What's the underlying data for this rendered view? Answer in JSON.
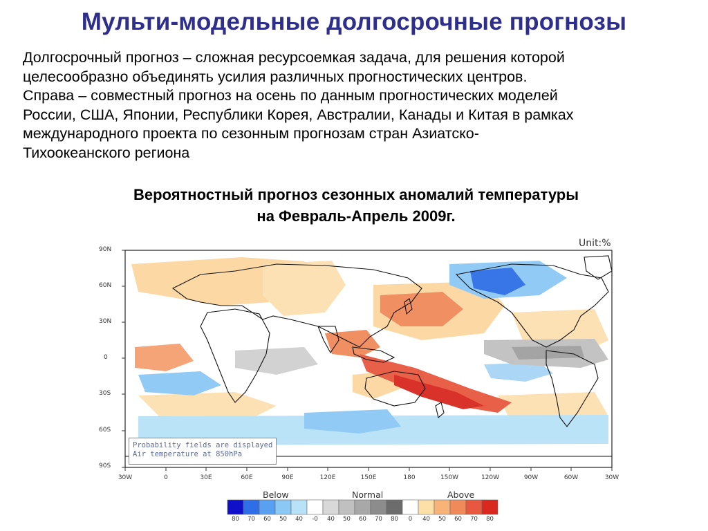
{
  "title": "Мульти-модельные долгосрочные прогнозы",
  "body_lines": [
    "Долгосрочный прогноз – сложная ресурсоемкая задача, для решения которой",
    "целесообразно объединять усилия различных прогностических центров.",
    "Справа – совместный прогноз на осень по данным прогностических моделей",
    "России, США, Японии, Республики Корея, Австралии, Канады и Китая в рамках",
    "международного проекта по сезонным прогнозам стран Азиатско-",
    "Тихоокеанского региона"
  ],
  "subtitle_lines": [
    "Вероятностный прогноз сезонных аномалий температуры",
    "на Февраль-Апрель 2009г."
  ],
  "map": {
    "unit": "Unit:%",
    "lat_labels": [
      "90N",
      "60N",
      "30N",
      "0",
      "30S",
      "60S",
      "90S"
    ],
    "lon_labels": [
      "30W",
      "0",
      "30E",
      "60E",
      "90E",
      "120E",
      "150E",
      "180",
      "150W",
      "120W",
      "90W",
      "60W",
      "30W"
    ],
    "note_lines": [
      "Probability fields are displayed",
      "Air temperature at 850hPa"
    ],
    "legend": {
      "below_label": "Below",
      "normal_label": "Normal",
      "above_label": "Above",
      "numbers": [
        "80",
        "70",
        "60",
        "50",
        "40",
        "-0",
        "40",
        "50",
        "60",
        "70",
        "80",
        "0",
        "40",
        "50",
        "60",
        "70",
        "80"
      ],
      "colors": [
        "#1010c8",
        "#2e6ee6",
        "#5aa0f0",
        "#8cc8f5",
        "#b8e2f8",
        "#ffffff",
        "#d8d8d8",
        "#c0c0c0",
        "#a8a8a8",
        "#8c8c8c",
        "#6c6c6c",
        "#ffffff",
        "#fce0a8",
        "#f8b478",
        "#f08a5a",
        "#e85840",
        "#d82820"
      ]
    },
    "colors": {
      "below_strong": "#2e6ee6",
      "below_weak": "#a8d4f5",
      "normal": "#c8c8c8",
      "above_weak": "#fcd8a0",
      "above_mid": "#f4a070",
      "above_strong": "#e0281c"
    }
  }
}
